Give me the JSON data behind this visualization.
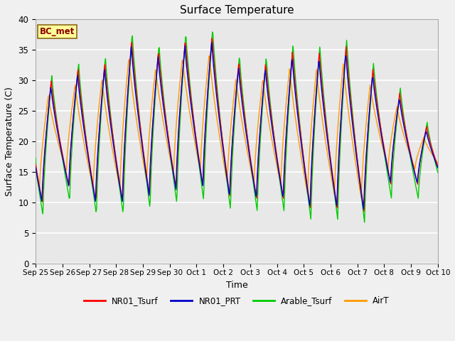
{
  "title": "Surface Temperature",
  "ylabel": "Surface Temperature (C)",
  "xlabel": "Time",
  "annotation": "BC_met",
  "ylim": [
    0,
    40
  ],
  "xlim": [
    0,
    15
  ],
  "background_color": "#e8e8e8",
  "fig_background": "#f0f0f0",
  "grid_color": "#ffffff",
  "legend_entries": [
    "NR01_Tsurf",
    "NR01_PRT",
    "Arable_Tsurf",
    "AirT"
  ],
  "line_colors": [
    "#ff0000",
    "#0000cc",
    "#00cc00",
    "#ff9900"
  ],
  "line_width": 1.0,
  "tick_labels": [
    "Sep 25",
    "Sep 26",
    "Sep 27",
    "Sep 28",
    "Sep 29",
    "Sep 30",
    "Oct 1",
    "Oct 2",
    "Oct 3",
    "Oct 4",
    "Oct 5",
    "Oct 6",
    "Oct 7",
    "Oct 8",
    "Oct 9",
    "Oct 10"
  ],
  "peaks_red": [
    30.0,
    32.0,
    33.0,
    36.8,
    35.0,
    36.8,
    37.5,
    33.2,
    33.0,
    35.0,
    34.8,
    35.8,
    32.0,
    28.0,
    22.5,
    22.5
  ],
  "troughs_red": [
    10.0,
    12.5,
    10.0,
    10.0,
    11.0,
    12.0,
    12.5,
    10.8,
    10.5,
    10.5,
    9.0,
    9.0,
    8.5,
    13.0,
    13.0,
    13.0
  ],
  "n_points": 720
}
